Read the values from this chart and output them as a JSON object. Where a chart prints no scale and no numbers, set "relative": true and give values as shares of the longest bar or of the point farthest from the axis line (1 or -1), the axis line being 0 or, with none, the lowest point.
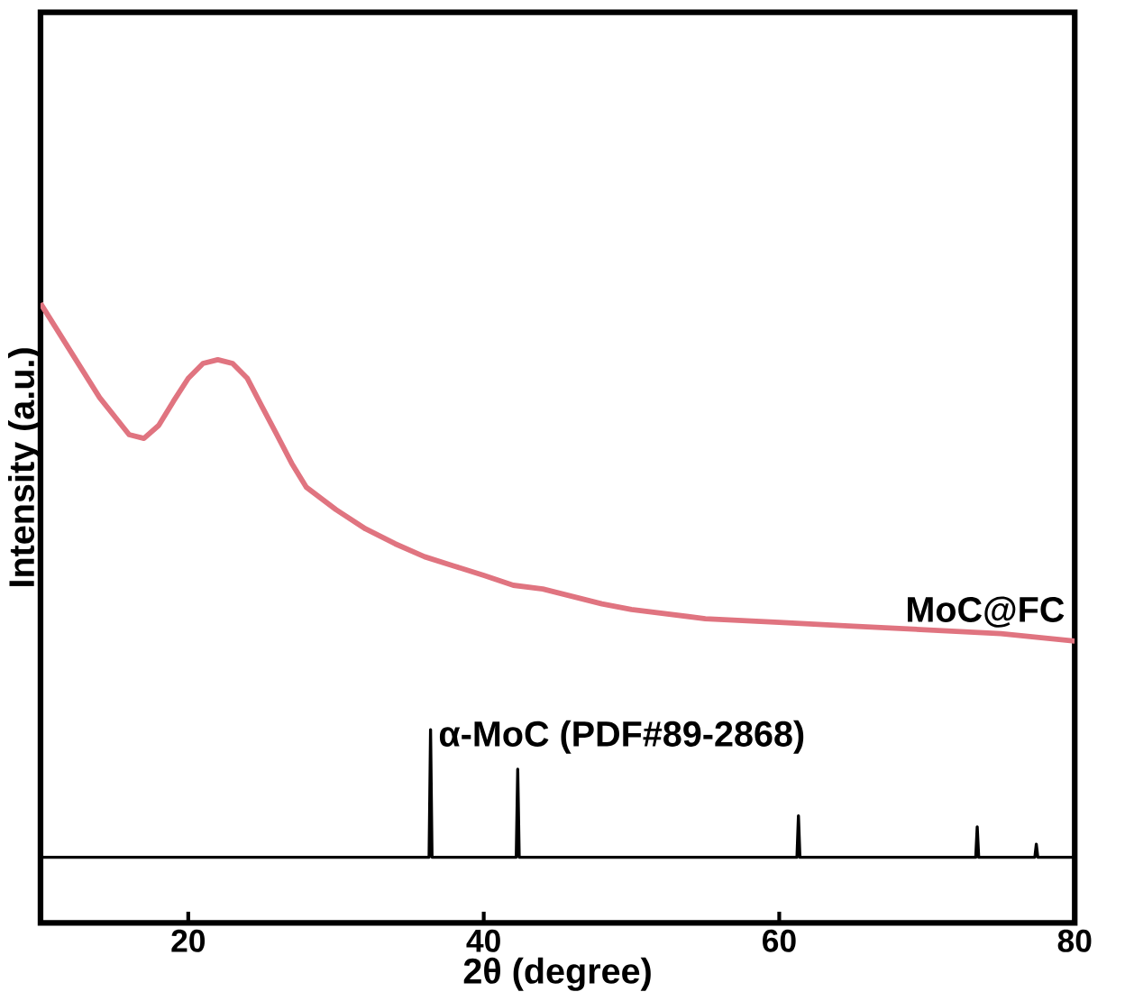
{
  "chart_data": {
    "type": "line",
    "xlabel": "2θ (degree)",
    "ylabel": "Intensity (a.u.)",
    "relative": true,
    "xlim": [
      10,
      80
    ],
    "xticks": [
      20,
      40,
      60,
      80
    ],
    "grid": false,
    "marker": "none",
    "line_style": "solid",
    "series": [
      {
        "name": "MoC@FC",
        "color": "#e07480",
        "x": [
          10,
          12,
          14,
          16,
          17,
          18,
          19,
          20,
          21,
          22,
          23,
          24,
          25,
          26,
          27,
          28,
          30,
          32,
          34,
          36,
          38,
          40,
          42,
          44,
          46,
          48,
          50,
          55,
          60,
          65,
          70,
          75,
          80
        ],
        "values": [
          1.0,
          0.924,
          0.848,
          0.788,
          0.782,
          0.803,
          0.842,
          0.879,
          0.903,
          0.909,
          0.903,
          0.879,
          0.833,
          0.788,
          0.742,
          0.703,
          0.667,
          0.636,
          0.612,
          0.591,
          0.576,
          0.561,
          0.545,
          0.539,
          0.527,
          0.515,
          0.506,
          0.491,
          0.485,
          0.479,
          0.473,
          0.467,
          0.455
        ]
      },
      {
        "name": "α-MoC (PDF#89-2868)",
        "color": "#000000",
        "x": [
          10,
          36.3,
          36.4,
          36.5,
          42.2,
          42.3,
          42.4,
          61.2,
          61.3,
          61.4,
          73.3,
          73.4,
          73.5,
          77.3,
          77.4,
          77.5,
          80
        ],
        "values": [
          0.106,
          0.106,
          0.312,
          0.106,
          0.106,
          0.248,
          0.106,
          0.106,
          0.173,
          0.106,
          0.106,
          0.155,
          0.106,
          0.106,
          0.127,
          0.106,
          0.106
        ]
      }
    ]
  }
}
